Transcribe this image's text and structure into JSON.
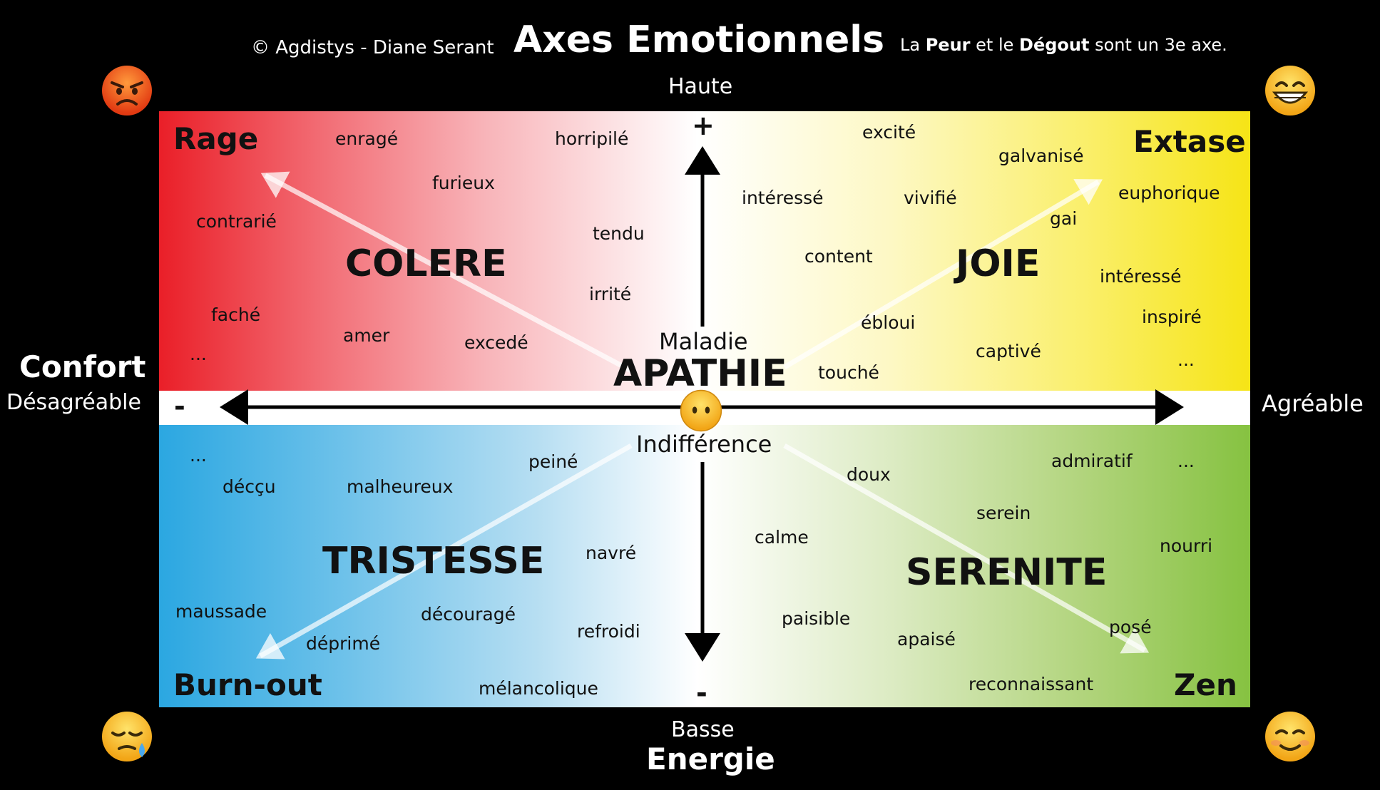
{
  "header": {
    "copyright": "© Agdistys - Diane Serant",
    "title": "Axes Emotionnels",
    "note_prefix": "La ",
    "note_peur": "Peur",
    "note_middle": " et le ",
    "note_degout": "Dégout",
    "note_suffix": " sont un 3e axe."
  },
  "axes": {
    "top": "Haute",
    "bottom": "Basse",
    "vertical_title": "Energie",
    "horizontal_title": "Confort",
    "left": "Désagréable",
    "right": "Agréable",
    "plus": "+",
    "minus": "-"
  },
  "center": {
    "upper": "Maladie",
    "main": "APATHIE",
    "lower": "Indifférence"
  },
  "quadrants": {
    "top_left": {
      "emotion": "COLERE",
      "corner": "Rage",
      "color": "#ea1f28",
      "words": [
        "enragé",
        "horripilé",
        "furieux",
        "contrarié",
        "tendu",
        "irrité",
        "faché",
        "amer",
        "excedé",
        "..."
      ]
    },
    "top_right": {
      "emotion": "JOIE",
      "corner": "Extase",
      "color": "#f6e416",
      "words": [
        "excité",
        "galvanisé",
        "intéressé",
        "vivifié",
        "euphorique",
        "gai",
        "content",
        "intéressé",
        "inspiré",
        "ébloui",
        "captivé",
        "touché",
        "..."
      ]
    },
    "bottom_left": {
      "emotion": "TRISTESSE",
      "corner": "Burn-out",
      "color": "#2ba7e1",
      "words": [
        "...",
        "décçu",
        "malheureux",
        "peiné",
        "navré",
        "maussade",
        "découragé",
        "déprimé",
        "refroidi",
        "mélancolique"
      ]
    },
    "bottom_right": {
      "emotion": "SERENITE",
      "corner": "Zen",
      "color": "#86c241",
      "words": [
        "doux",
        "admiratif",
        "...",
        "serein",
        "calme",
        "nourri",
        "paisible",
        "apaisé",
        "posé",
        "reconnaissant"
      ]
    }
  },
  "emojis": [
    "angry-face-icon",
    "grinning-face-icon",
    "sleepy-face-icon",
    "smiling-face-icon",
    "neutral-face-icon"
  ]
}
